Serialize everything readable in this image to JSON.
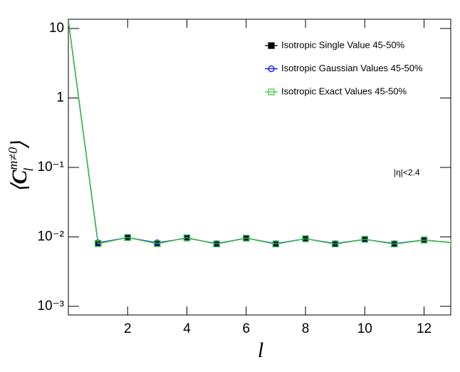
{
  "chart_data": {
    "type": "line",
    "log_y": true,
    "x": [
      0,
      1,
      2,
      3,
      4,
      5,
      6,
      7,
      8,
      9,
      10,
      11,
      12,
      13
    ],
    "series": [
      {
        "name": "Isotropic Single Value 45-50%",
        "color": "#000000",
        "marker": "square-filled",
        "values": [
          13,
          0.008,
          0.0098,
          0.008,
          0.0097,
          0.0079,
          0.0096,
          0.0079,
          0.0094,
          0.0079,
          0.0092,
          0.0079,
          0.009,
          0.0082
        ]
      },
      {
        "name": "Isotropic Gaussian Values 45-50%",
        "color": "#0000ff",
        "marker": "circle-open",
        "values": [
          13,
          0.0082,
          0.0098,
          0.0082,
          0.0096,
          0.008,
          0.0096,
          0.008,
          0.0094,
          0.008,
          0.0092,
          0.008,
          0.009,
          0.0082
        ]
      },
      {
        "name": "Isotropic Exact Values 45-50%",
        "color": "#33cc33",
        "marker": "square-open",
        "values": [
          13,
          0.008,
          0.0098,
          0.008,
          0.0097,
          0.0079,
          0.0096,
          0.0079,
          0.0094,
          0.0079,
          0.0092,
          0.0079,
          0.009,
          0.0082
        ]
      }
    ],
    "xlim": [
      0,
      12.9
    ],
    "xticks": [
      2,
      4,
      6,
      8,
      10,
      12
    ],
    "ylim": [
      0.00075,
      13.6
    ],
    "yticks": [
      {
        "value": 0.001,
        "label": "10⁻³"
      },
      {
        "value": 0.01,
        "label": "10⁻²"
      },
      {
        "value": 0.1,
        "label": "10⁻¹"
      },
      1,
      10
    ],
    "x_label": "l",
    "y_label": {
      "open": "⟨",
      "base": "C",
      "sup": "m≠0",
      "sub": "l",
      "close": "⟩"
    },
    "annotation": "|η|<2.4",
    "legend": "top-right"
  }
}
